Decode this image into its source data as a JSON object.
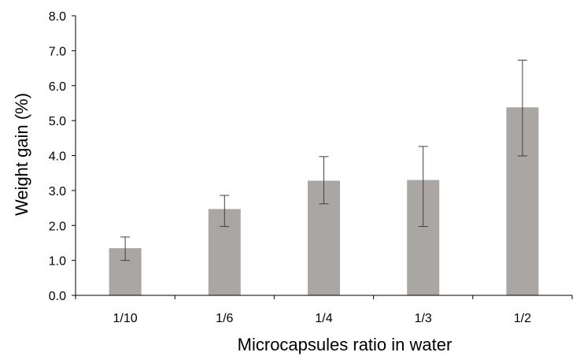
{
  "chart_data": {
    "type": "bar",
    "title": "",
    "xlabel": "Microcapsules ratio in water",
    "ylabel": "Weight gain (%)",
    "categories": [
      "1/10",
      "1/6",
      "1/4",
      "1/3",
      "1/2"
    ],
    "values": [
      1.35,
      2.47,
      3.28,
      3.3,
      5.38
    ],
    "error_bars": {
      "lower": [
        1.0,
        1.97,
        2.62,
        1.97,
        3.99
      ],
      "upper": [
        1.67,
        2.86,
        3.97,
        4.26,
        6.73
      ]
    },
    "ylim": [
      0,
      8
    ],
    "yticks": [
      "0.0",
      "1.0",
      "2.0",
      "3.0",
      "4.0",
      "5.0",
      "6.0",
      "7.0",
      "8.0"
    ],
    "grid": false,
    "legend": "none",
    "colors": {
      "bar": "#aaa6a4",
      "error_bar": "#404040",
      "axis": "#000000",
      "text": "#000000"
    }
  }
}
